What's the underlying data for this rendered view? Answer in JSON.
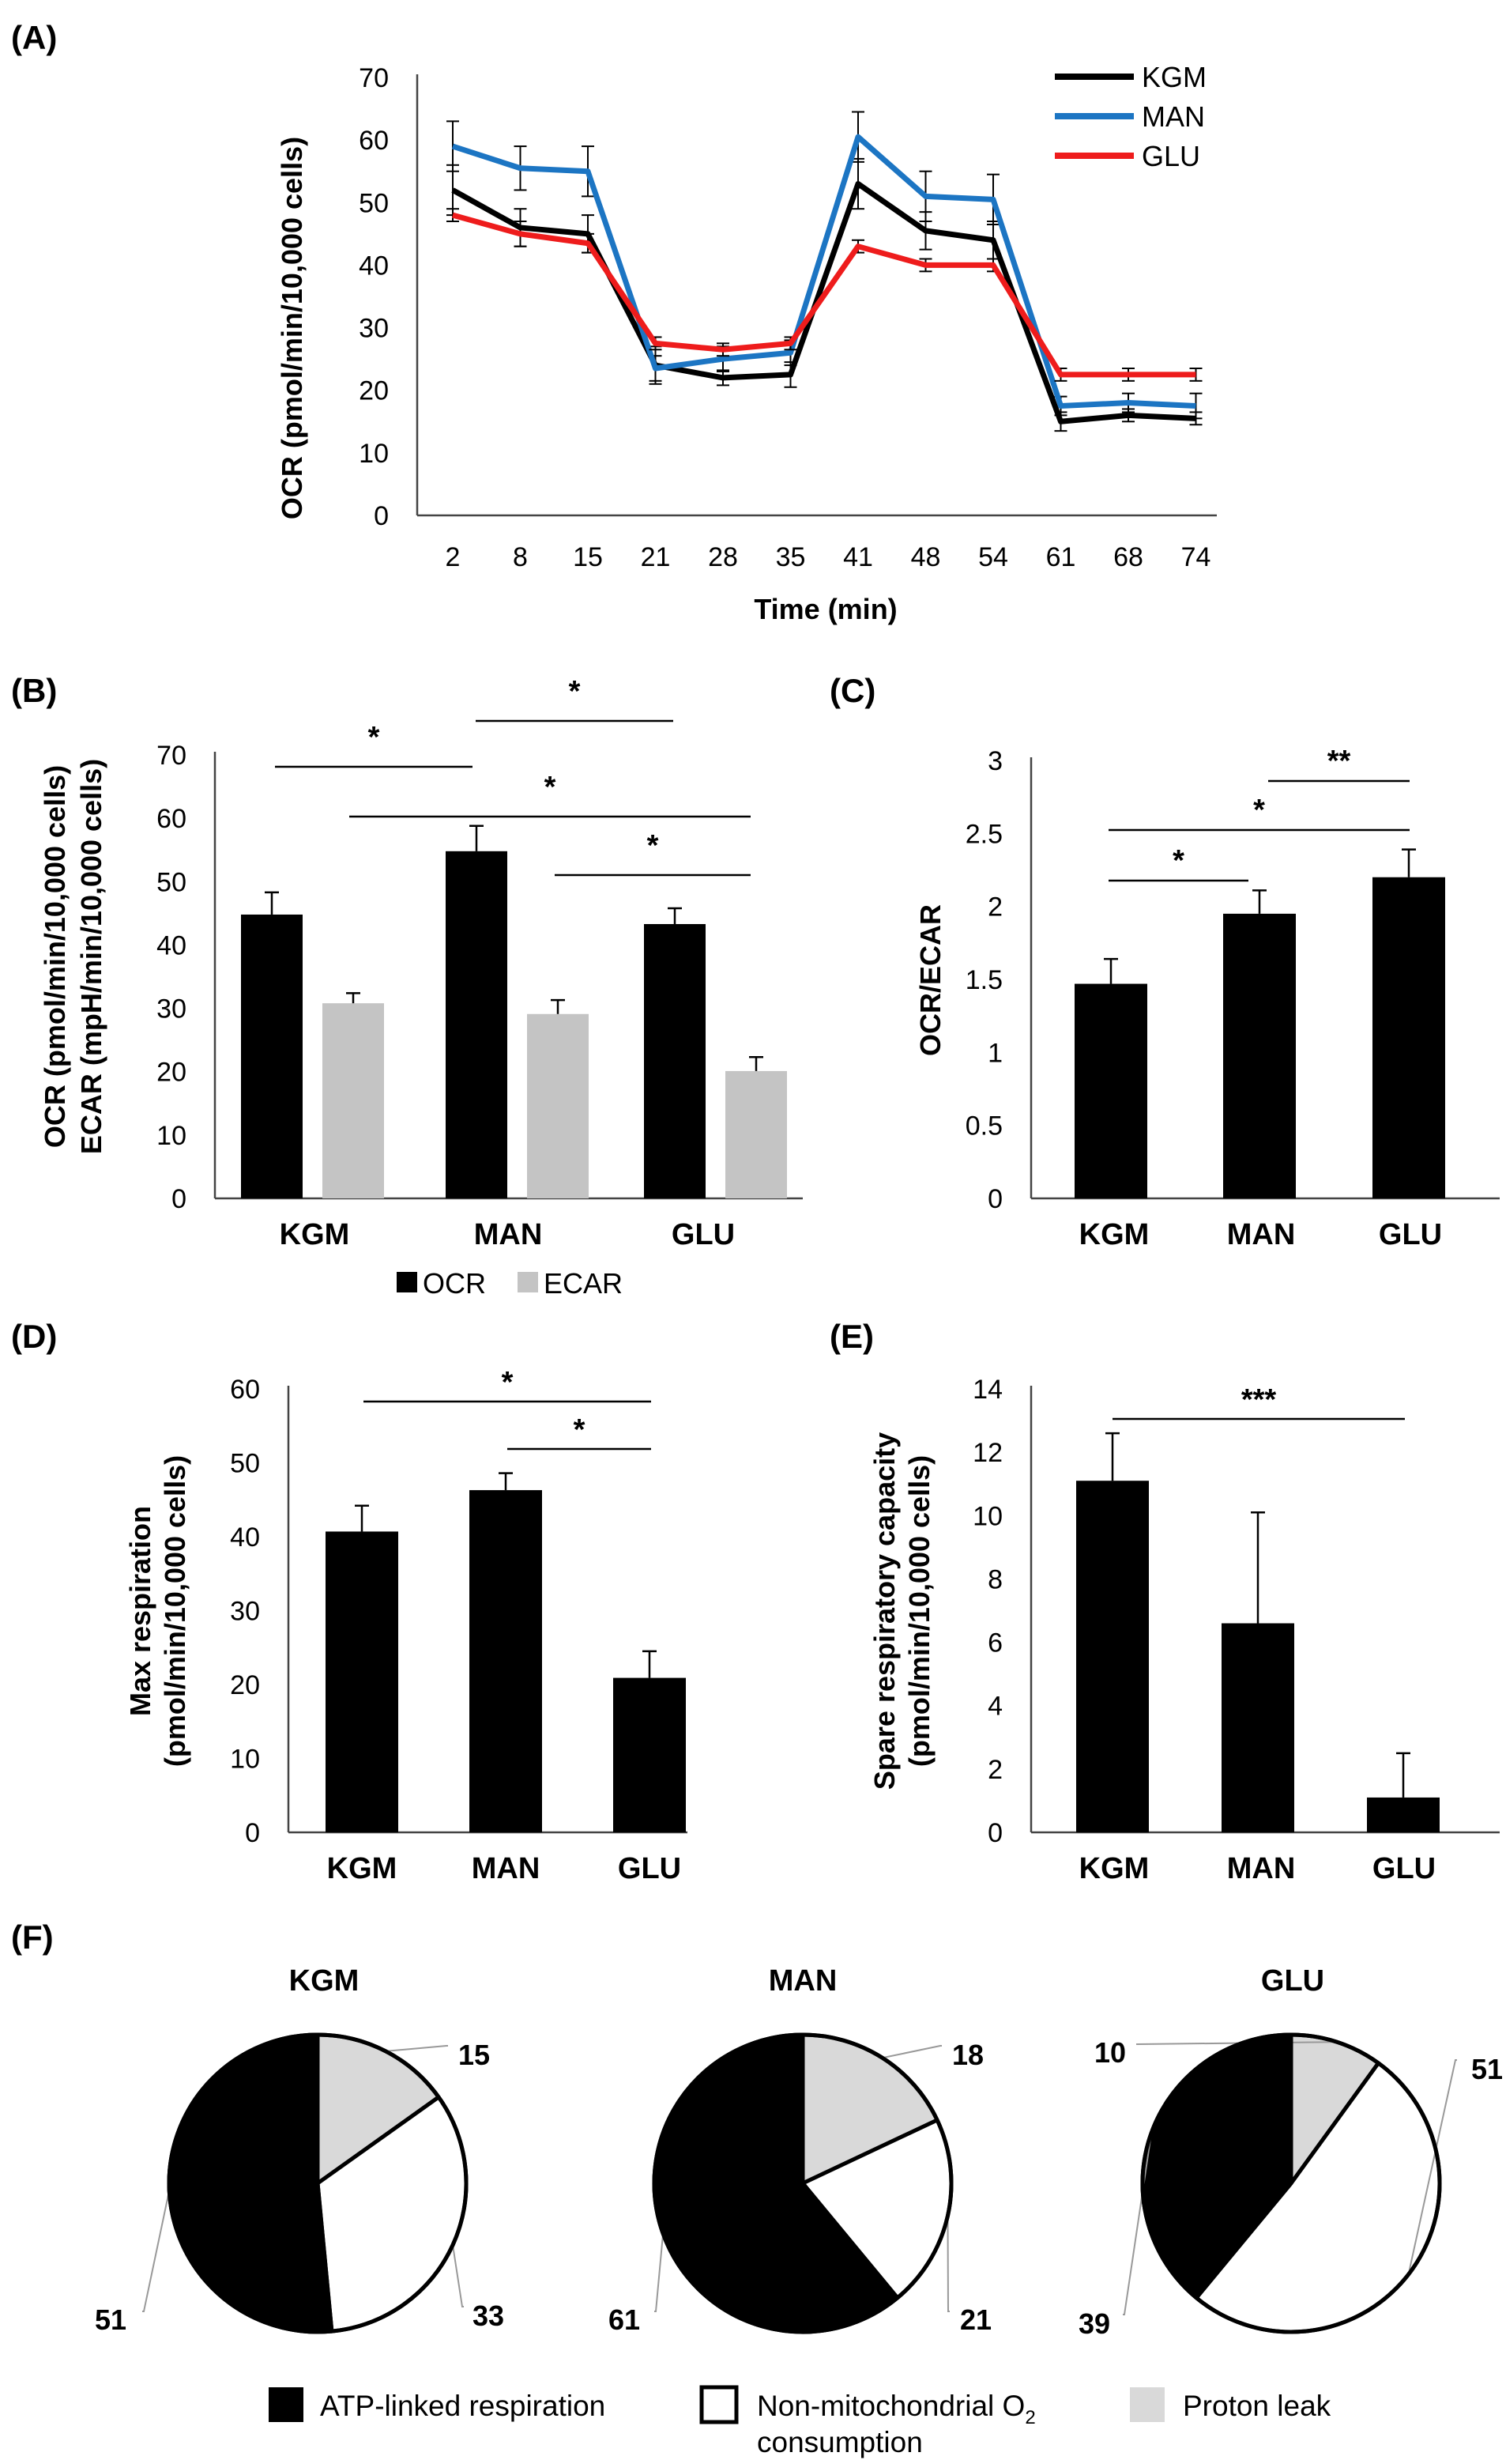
{
  "colors": {
    "KGM": "#000000",
    "MAN": "#1c75c3",
    "GLU": "#ee1c1c",
    "OCR": "#000000",
    "ECAR": "#c4c4c4",
    "atp": "#000000",
    "nonmito": "#ffffff",
    "leak": "#d9d9d9"
  },
  "chart_data": [
    {
      "panel": "(A)",
      "type": "line",
      "xlabel": "Time (min)",
      "ylabel": "OCR (pmol/min/10,000 cells)",
      "ylim": [
        0,
        70
      ],
      "yticks": [
        "0",
        "10",
        "20",
        "30",
        "40",
        "50",
        "60",
        "70"
      ],
      "categories": [
        "2",
        "8",
        "15",
        "21",
        "28",
        "35",
        "41",
        "48",
        "54",
        "61",
        "68",
        "74"
      ],
      "series": [
        {
          "name": "KGM",
          "values": [
            52,
            46,
            45,
            24,
            22,
            22.5,
            53,
            45.5,
            44,
            15,
            16,
            15.5
          ],
          "err": [
            4,
            3,
            3,
            3,
            1.2,
            2,
            4,
            3,
            3,
            1.5,
            1,
            1
          ]
        },
        {
          "name": "MAN",
          "values": [
            59,
            55.5,
            55,
            23.5,
            25,
            26,
            60.5,
            51,
            50.5,
            17.5,
            18,
            17.5
          ],
          "err": [
            4,
            3.5,
            4,
            2,
            2,
            2,
            4,
            4,
            4,
            1.5,
            1.5,
            2
          ]
        },
        {
          "name": "GLU",
          "values": [
            48,
            45,
            43.5,
            27.5,
            26.5,
            27.5,
            43,
            40,
            40,
            22.5,
            22.5,
            22.5
          ],
          "err": [
            1,
            2,
            1.5,
            1,
            1,
            1,
            1,
            1,
            1,
            1,
            1,
            1
          ]
        }
      ],
      "legend": [
        "KGM",
        "MAN",
        "GLU"
      ]
    },
    {
      "panel": "(B)",
      "type": "bar",
      "ylabel_line1": "OCR (pmol/min/10,000 cells)",
      "ylabel_line2": "ECAR (mpH/min/10,000 cells)",
      "ylim": [
        0,
        70
      ],
      "yticks": [
        "0",
        "10",
        "20",
        "30",
        "40",
        "50",
        "60",
        "70"
      ],
      "categories": [
        "KGM",
        "MAN",
        "GLU"
      ],
      "series": [
        {
          "name": "OCR",
          "values": [
            44.8,
            54.8,
            43.3
          ],
          "err": [
            3.5,
            4,
            2.5
          ]
        },
        {
          "name": "ECAR",
          "values": [
            30.8,
            29.1,
            20.1
          ],
          "err": [
            1.6,
            2.2,
            2.2
          ]
        }
      ],
      "legend": [
        "OCR",
        "ECAR"
      ],
      "annotations": [
        "*",
        "*",
        "*",
        "*"
      ]
    },
    {
      "panel": "(C)",
      "type": "bar",
      "ylabel": "OCR/ECAR",
      "ylim": [
        0,
        3
      ],
      "yticks": [
        "0",
        "0.5",
        "1",
        "1.5",
        "2",
        "2.5",
        "3"
      ],
      "categories": [
        "KGM",
        "MAN",
        "GLU"
      ],
      "values": [
        1.47,
        1.95,
        2.2
      ],
      "err": [
        0.17,
        0.16,
        0.19
      ],
      "annotations": [
        "*",
        "*",
        "**"
      ]
    },
    {
      "panel": "(D)",
      "type": "bar",
      "ylabel_line1": "Max respiration",
      "ylabel_line2": "(pmol/min/10,000 cells)",
      "ylim": [
        0,
        60
      ],
      "yticks": [
        "0",
        "10",
        "20",
        "30",
        "40",
        "50",
        "60"
      ],
      "categories": [
        "KGM",
        "MAN",
        "GLU"
      ],
      "values": [
        40.7,
        46.3,
        20.9
      ],
      "err": [
        3.5,
        2.3,
        3.6
      ],
      "annotations": [
        "*",
        "*"
      ]
    },
    {
      "panel": "(E)",
      "type": "bar",
      "ylabel_line1": "Spare respiratory capacity",
      "ylabel_line2": "(pmol/min/10,000 cells)",
      "ylim": [
        0,
        14
      ],
      "yticks": [
        "0",
        "2",
        "4",
        "6",
        "8",
        "10",
        "12",
        "14"
      ],
      "categories": [
        "KGM",
        "MAN",
        "GLU"
      ],
      "values": [
        11.1,
        6.6,
        1.1
      ],
      "err": [
        1.5,
        3.5,
        1.4
      ],
      "annotations": [
        "***"
      ]
    },
    {
      "panel": "(F)",
      "type": "pie",
      "pies": [
        {
          "title": "KGM",
          "slices": [
            {
              "name": "Proton leak",
              "value": 15
            },
            {
              "name": "Non-mitochondrial O2 consumption",
              "value": 33
            },
            {
              "name": "ATP-linked respiration",
              "value": 51
            }
          ]
        },
        {
          "title": "MAN",
          "slices": [
            {
              "name": "Proton leak",
              "value": 18
            },
            {
              "name": "Non-mitochondrial O2 consumption",
              "value": 21
            },
            {
              "name": "ATP-linked respiration",
              "value": 61
            }
          ]
        },
        {
          "title": "GLU",
          "slices": [
            {
              "name": "Proton leak",
              "value": 10
            },
            {
              "name": "Non-mitochondrial O2 consumption",
              "value": 51
            },
            {
              "name": "ATP-linked respiration",
              "value": 39
            }
          ]
        }
      ],
      "legend": {
        "atp": "ATP-linked respiration",
        "nonmito_line1": "Non-mitochondrial O",
        "nonmito_sub": "2",
        "nonmito_line2": "consumption",
        "leak": "Proton leak"
      }
    }
  ]
}
